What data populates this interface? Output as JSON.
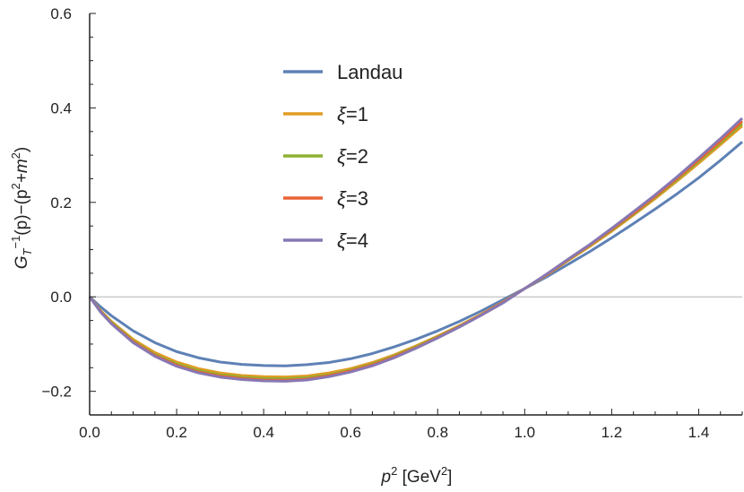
{
  "chart_data": {
    "type": "line",
    "title": "",
    "xlabel": {
      "base": "p",
      "sup": "2",
      "unit_open": " [GeV",
      "unit_sup": "2",
      "unit_close": "]"
    },
    "ylabel": {
      "g": "G",
      "g_sub": "T",
      "g_sup": "−1",
      "mid": "(p)−(p",
      "p_sup": "2",
      "plus": "+m",
      "m_sup": "2",
      "close": ")"
    },
    "xlim": [
      0.0,
      1.5
    ],
    "ylim": [
      -0.25,
      0.6
    ],
    "xticks": [
      0.0,
      0.2,
      0.4,
      0.6,
      0.8,
      1.0,
      1.2,
      1.4
    ],
    "xtick_labels": [
      "0.0",
      "0.2",
      "0.4",
      "0.6",
      "0.8",
      "1.0",
      "1.2",
      "1.4"
    ],
    "yticks": [
      -0.2,
      0.0,
      0.2,
      0.4,
      0.6
    ],
    "ytick_labels": [
      "−0.2",
      "0.0",
      "0.2",
      "0.4",
      "0.6"
    ],
    "zero_line": true,
    "grid": false,
    "legend_position": "top-left-inside",
    "x": [
      0.0,
      0.025,
      0.05,
      0.1,
      0.15,
      0.2,
      0.25,
      0.3,
      0.35,
      0.4,
      0.45,
      0.5,
      0.55,
      0.6,
      0.65,
      0.7,
      0.75,
      0.8,
      0.85,
      0.9,
      0.95,
      1.0,
      1.05,
      1.1,
      1.15,
      1.2,
      1.25,
      1.3,
      1.35,
      1.4,
      1.45,
      1.5
    ],
    "series": [
      {
        "name": "Landau",
        "color": "#5E81B5",
        "values": [
          0.0,
          -0.021,
          -0.04,
          -0.072,
          -0.097,
          -0.116,
          -0.129,
          -0.138,
          -0.143,
          -0.1455,
          -0.146,
          -0.1435,
          -0.139,
          -0.131,
          -0.12,
          -0.106,
          -0.09,
          -0.072,
          -0.052,
          -0.03,
          -0.006,
          0.0175,
          0.042,
          0.069,
          0.096,
          0.125,
          0.155,
          0.186,
          0.218,
          0.252,
          0.289,
          0.328
        ]
      },
      {
        "name": "ξ=1",
        "color": "#E19C24",
        "values": [
          0.0,
          -0.029,
          -0.052,
          -0.09,
          -0.118,
          -0.138,
          -0.152,
          -0.161,
          -0.1665,
          -0.169,
          -0.1695,
          -0.1675,
          -0.161,
          -0.152,
          -0.139,
          -0.123,
          -0.104,
          -0.083,
          -0.061,
          -0.037,
          -0.011,
          0.0175,
          0.046,
          0.077,
          0.107,
          0.139,
          0.173,
          0.208,
          0.245,
          0.283,
          0.322,
          0.362
        ]
      },
      {
        "name": "ξ=2",
        "color": "#8FB032",
        "values": [
          0.0,
          -0.03,
          -0.054,
          -0.093,
          -0.122,
          -0.142,
          -0.156,
          -0.165,
          -0.17,
          -0.173,
          -0.1735,
          -0.171,
          -0.165,
          -0.155,
          -0.142,
          -0.125,
          -0.106,
          -0.085,
          -0.062,
          -0.038,
          -0.012,
          0.0175,
          0.047,
          0.078,
          0.109,
          0.141,
          0.175,
          0.211,
          0.248,
          0.287,
          0.326,
          0.367
        ]
      },
      {
        "name": "ξ=3",
        "color": "#EB6235",
        "values": [
          0.0,
          -0.031,
          -0.056,
          -0.095,
          -0.124,
          -0.145,
          -0.159,
          -0.168,
          -0.173,
          -0.176,
          -0.1765,
          -0.174,
          -0.167,
          -0.157,
          -0.144,
          -0.127,
          -0.108,
          -0.086,
          -0.063,
          -0.038,
          -0.012,
          0.0175,
          0.047,
          0.079,
          0.11,
          0.143,
          0.177,
          0.213,
          0.251,
          0.29,
          0.33,
          0.372
        ]
      },
      {
        "name": "ξ=4",
        "color": "#8778B3",
        "values": [
          0.0,
          -0.032,
          -0.057,
          -0.097,
          -0.126,
          -0.147,
          -0.161,
          -0.17,
          -0.175,
          -0.178,
          -0.1785,
          -0.176,
          -0.169,
          -0.159,
          -0.146,
          -0.129,
          -0.109,
          -0.087,
          -0.064,
          -0.039,
          -0.013,
          0.0175,
          0.048,
          0.08,
          0.111,
          0.145,
          0.18,
          0.216,
          0.254,
          0.294,
          0.335,
          0.378
        ]
      }
    ]
  }
}
